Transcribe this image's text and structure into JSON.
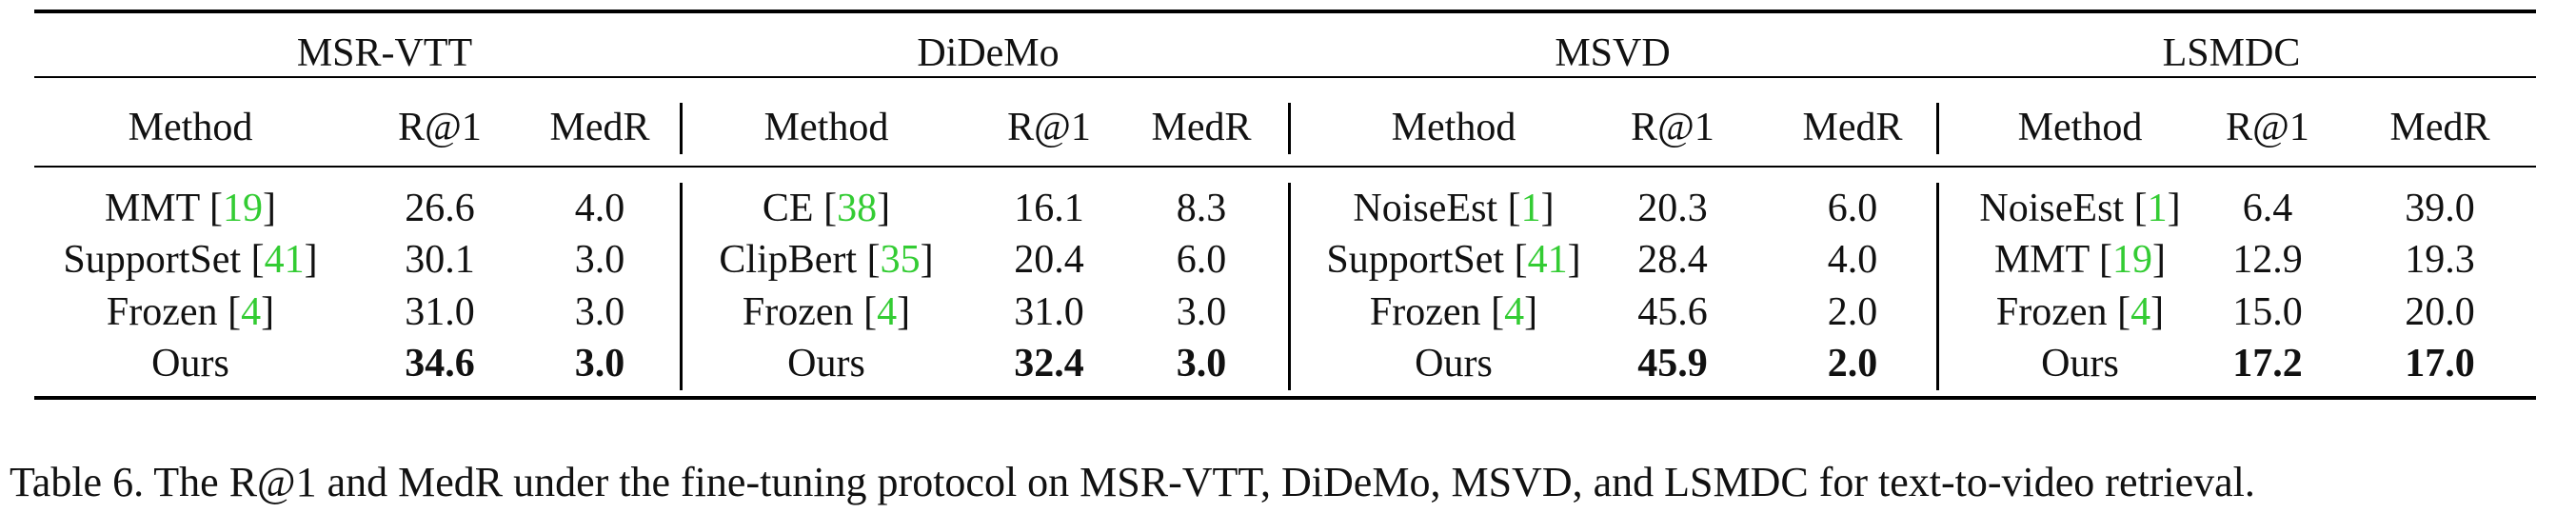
{
  "table": {
    "groups": [
      {
        "name": "MSR-VTT",
        "headers": [
          "Method",
          "R@1",
          "MedR"
        ],
        "rows": [
          {
            "method": "MMT",
            "ref": "19",
            "r1": "26.6",
            "medr": "4.0",
            "bold": false
          },
          {
            "method": "SupportSet",
            "ref": "41",
            "r1": "30.1",
            "medr": "3.0",
            "bold": false
          },
          {
            "method": "Frozen",
            "ref": "4",
            "r1": "31.0",
            "medr": "3.0",
            "bold": false
          },
          {
            "method": "Ours",
            "ref": "",
            "r1": "34.6",
            "medr": "3.0",
            "bold": true
          }
        ]
      },
      {
        "name": "DiDeMo",
        "headers": [
          "Method",
          "R@1",
          "MedR"
        ],
        "rows": [
          {
            "method": "CE",
            "ref": "38",
            "r1": "16.1",
            "medr": "8.3",
            "bold": false
          },
          {
            "method": "ClipBert",
            "ref": "35",
            "r1": "20.4",
            "medr": "6.0",
            "bold": false
          },
          {
            "method": "Frozen",
            "ref": "4",
            "r1": "31.0",
            "medr": "3.0",
            "bold": false
          },
          {
            "method": "Ours",
            "ref": "",
            "r1": "32.4",
            "medr": "3.0",
            "bold": true
          }
        ]
      },
      {
        "name": "MSVD",
        "headers": [
          "Method",
          "R@1",
          "MedR"
        ],
        "rows": [
          {
            "method": "NoiseEst",
            "ref": "1",
            "r1": "20.3",
            "medr": "6.0",
            "bold": false
          },
          {
            "method": "SupportSet",
            "ref": "41",
            "r1": "28.4",
            "medr": "4.0",
            "bold": false
          },
          {
            "method": "Frozen",
            "ref": "4",
            "r1": "45.6",
            "medr": "2.0",
            "bold": false
          },
          {
            "method": "Ours",
            "ref": "",
            "r1": "45.9",
            "medr": "2.0",
            "bold": true
          }
        ]
      },
      {
        "name": "LSMDC",
        "headers": [
          "Method",
          "R@1",
          "MedR"
        ],
        "rows": [
          {
            "method": "NoiseEst",
            "ref": "1",
            "r1": "6.4",
            "medr": "39.0",
            "bold": false
          },
          {
            "method": "MMT",
            "ref": "19",
            "r1": "12.9",
            "medr": "19.3",
            "bold": false
          },
          {
            "method": "Frozen",
            "ref": "4",
            "r1": "15.0",
            "medr": "20.0",
            "bold": false
          },
          {
            "method": "Ours",
            "ref": "",
            "r1": "17.2",
            "medr": "17.0",
            "bold": true
          }
        ]
      }
    ]
  },
  "caption": "Table 6. The R@1 and MedR under the fine-tuning protocol on MSR-VTT, DiDeMo, MSVD, and LSMDC for text-to-video retrieval."
}
